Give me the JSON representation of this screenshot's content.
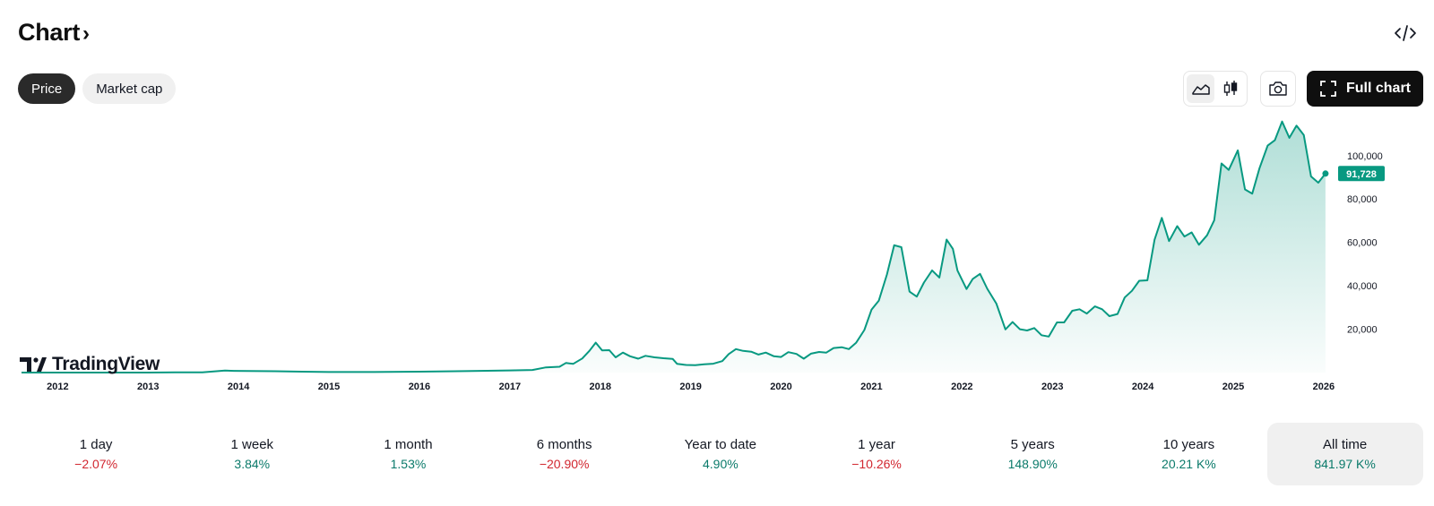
{
  "header": {
    "title": "Chart",
    "chevron": "›",
    "embed_icon": "code-embed-icon"
  },
  "pills": [
    {
      "label": "Price",
      "active": true
    },
    {
      "label": "Market cap",
      "active": false
    }
  ],
  "toolbar": {
    "area_icon": "area-chart-icon",
    "candle_icon": "candlestick-icon",
    "camera_icon": "camera-icon",
    "full_chart_label": "Full chart",
    "fullscreen_icon": "fullscreen-icon"
  },
  "brand": {
    "name": "TradingView"
  },
  "colors": {
    "line": "#089981",
    "price_label_bg": "#089981",
    "positive": "#0a7a6a",
    "negative": "#d1262f"
  },
  "chart_data": {
    "type": "area",
    "x_tick_labels": [
      "2012",
      "2013",
      "2014",
      "2015",
      "2016",
      "2017",
      "2018",
      "2019",
      "2020",
      "2021",
      "2022",
      "2023",
      "2024",
      "2025",
      "2026"
    ],
    "y_tick_labels": [
      "20,000",
      "40,000",
      "60,000",
      "80,000",
      "100,000"
    ],
    "y_ticks": [
      20000,
      40000,
      60000,
      80000,
      100000
    ],
    "ylim": [
      0,
      116000
    ],
    "xlim": [
      2011.6,
      2026.1
    ],
    "last_price_label": "91,728",
    "last_price": 91728,
    "series": [
      {
        "points": [
          [
            2011.6,
            5
          ],
          [
            2012.0,
            5
          ],
          [
            2012.5,
            7
          ],
          [
            2013.0,
            15
          ],
          [
            2013.3,
            130
          ],
          [
            2013.6,
            120
          ],
          [
            2013.85,
            900
          ],
          [
            2013.95,
            800
          ],
          [
            2014.1,
            700
          ],
          [
            2014.4,
            600
          ],
          [
            2014.7,
            400
          ],
          [
            2015.0,
            250
          ],
          [
            2015.5,
            250
          ],
          [
            2016.0,
            400
          ],
          [
            2016.5,
            650
          ],
          [
            2017.0,
            1000
          ],
          [
            2017.25,
            1200
          ],
          [
            2017.4,
            2400
          ],
          [
            2017.55,
            2700
          ],
          [
            2017.62,
            4400
          ],
          [
            2017.7,
            4000
          ],
          [
            2017.8,
            6500
          ],
          [
            2017.88,
            10000
          ],
          [
            2017.95,
            13800
          ],
          [
            2018.02,
            10200
          ],
          [
            2018.1,
            10300
          ],
          [
            2018.17,
            7000
          ],
          [
            2018.25,
            9200
          ],
          [
            2018.33,
            7500
          ],
          [
            2018.42,
            6400
          ],
          [
            2018.5,
            7700
          ],
          [
            2018.6,
            7000
          ],
          [
            2018.7,
            6600
          ],
          [
            2018.8,
            6300
          ],
          [
            2018.85,
            4000
          ],
          [
            2018.95,
            3500
          ],
          [
            2019.05,
            3400
          ],
          [
            2019.15,
            3800
          ],
          [
            2019.25,
            4100
          ],
          [
            2019.35,
            5300
          ],
          [
            2019.42,
            8500
          ],
          [
            2019.5,
            10800
          ],
          [
            2019.58,
            10000
          ],
          [
            2019.67,
            9600
          ],
          [
            2019.75,
            8300
          ],
          [
            2019.83,
            9200
          ],
          [
            2019.92,
            7500
          ],
          [
            2020.0,
            7200
          ],
          [
            2020.08,
            9400
          ],
          [
            2020.17,
            8600
          ],
          [
            2020.25,
            6400
          ],
          [
            2020.33,
            8700
          ],
          [
            2020.42,
            9500
          ],
          [
            2020.5,
            9200
          ],
          [
            2020.58,
            11300
          ],
          [
            2020.67,
            11700
          ],
          [
            2020.75,
            10800
          ],
          [
            2020.83,
            13800
          ],
          [
            2020.92,
            19600
          ],
          [
            2021.0,
            29000
          ],
          [
            2021.08,
            33100
          ],
          [
            2021.17,
            45200
          ],
          [
            2021.25,
            58700
          ],
          [
            2021.33,
            57800
          ],
          [
            2021.42,
            37300
          ],
          [
            2021.5,
            35000
          ],
          [
            2021.58,
            41500
          ],
          [
            2021.67,
            47100
          ],
          [
            2021.75,
            43800
          ],
          [
            2021.83,
            61300
          ],
          [
            2021.9,
            57000
          ],
          [
            2021.95,
            47000
          ],
          [
            2022.05,
            38500
          ],
          [
            2022.12,
            43200
          ],
          [
            2022.2,
            45500
          ],
          [
            2022.28,
            38600
          ],
          [
            2022.38,
            31800
          ],
          [
            2022.48,
            19900
          ],
          [
            2022.56,
            23300
          ],
          [
            2022.64,
            20000
          ],
          [
            2022.72,
            19400
          ],
          [
            2022.8,
            20500
          ],
          [
            2022.88,
            17200
          ],
          [
            2022.96,
            16600
          ],
          [
            2023.05,
            23100
          ],
          [
            2023.13,
            23100
          ],
          [
            2023.22,
            28500
          ],
          [
            2023.3,
            29200
          ],
          [
            2023.38,
            27200
          ],
          [
            2023.47,
            30500
          ],
          [
            2023.55,
            29200
          ],
          [
            2023.63,
            26000
          ],
          [
            2023.72,
            27000
          ],
          [
            2023.8,
            34600
          ],
          [
            2023.88,
            37700
          ],
          [
            2023.96,
            42300
          ],
          [
            2024.05,
            42500
          ],
          [
            2024.13,
            61200
          ],
          [
            2024.21,
            71300
          ],
          [
            2024.29,
            60600
          ],
          [
            2024.38,
            67500
          ],
          [
            2024.46,
            62700
          ],
          [
            2024.54,
            64600
          ],
          [
            2024.62,
            58900
          ],
          [
            2024.71,
            63300
          ],
          [
            2024.79,
            70200
          ],
          [
            2024.87,
            96400
          ],
          [
            2024.95,
            93400
          ],
          [
            2025.05,
            102400
          ],
          [
            2025.13,
            84400
          ],
          [
            2025.21,
            82500
          ],
          [
            2025.29,
            94200
          ],
          [
            2025.38,
            104600
          ],
          [
            2025.46,
            107100
          ],
          [
            2025.54,
            115700
          ],
          [
            2025.62,
            108200
          ],
          [
            2025.7,
            113800
          ],
          [
            2025.78,
            109500
          ],
          [
            2025.86,
            90400
          ],
          [
            2025.94,
            87500
          ],
          [
            2026.02,
            91728
          ]
        ]
      }
    ]
  },
  "periods": [
    {
      "label": "1 day",
      "value": "−2.07%",
      "trend": "negative",
      "selected": false
    },
    {
      "label": "1 week",
      "value": "3.84%",
      "trend": "positive",
      "selected": false
    },
    {
      "label": "1 month",
      "value": "1.53%",
      "trend": "positive",
      "selected": false
    },
    {
      "label": "6 months",
      "value": "−20.90%",
      "trend": "negative",
      "selected": false
    },
    {
      "label": "Year to date",
      "value": "4.90%",
      "trend": "positive",
      "selected": false
    },
    {
      "label": "1 year",
      "value": "−10.26%",
      "trend": "negative",
      "selected": false
    },
    {
      "label": "5 years",
      "value": "148.90%",
      "trend": "positive",
      "selected": false
    },
    {
      "label": "10 years",
      "value": "20.21 K%",
      "trend": "positive",
      "selected": false
    },
    {
      "label": "All time",
      "value": "841.97 K%",
      "trend": "positive",
      "selected": true
    }
  ]
}
